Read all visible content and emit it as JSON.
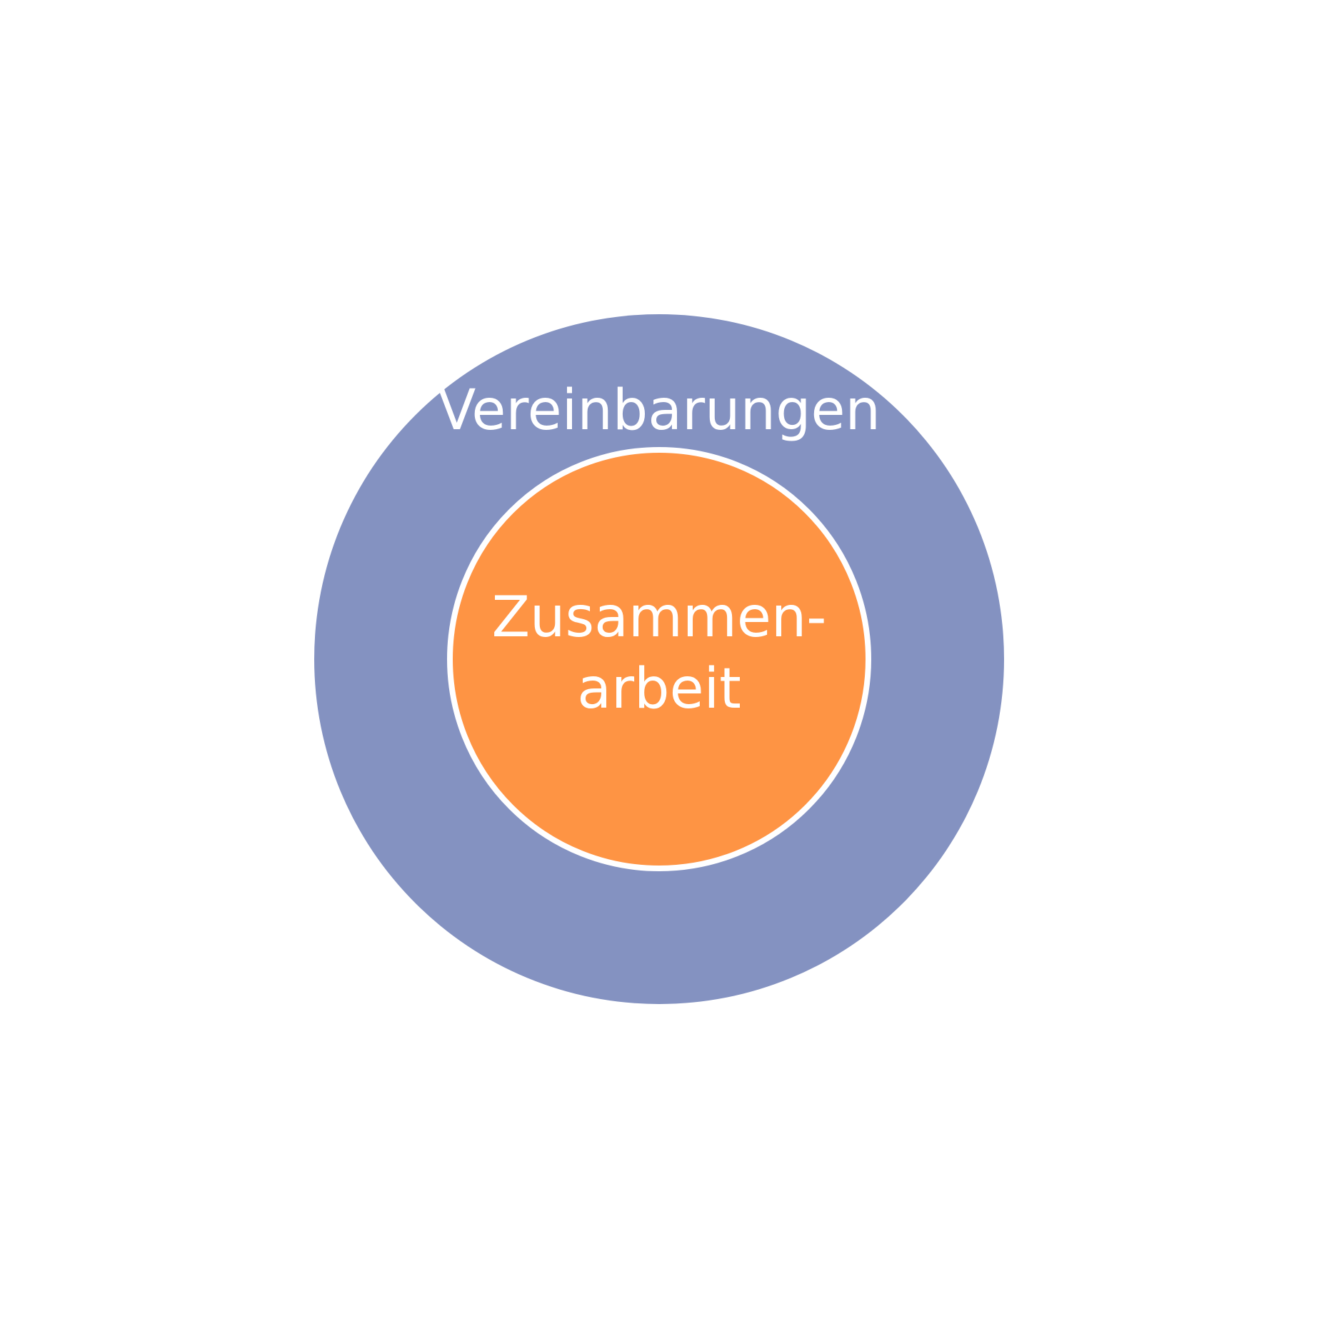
{
  "diagram": {
    "outer": {
      "label": "Vereinbarungen",
      "color": "#8492c1"
    },
    "inner": {
      "label_line1": "Zusammen-",
      "label_line2": "arbeit",
      "color": "#fe9444",
      "border_color": "#ffffff"
    }
  }
}
